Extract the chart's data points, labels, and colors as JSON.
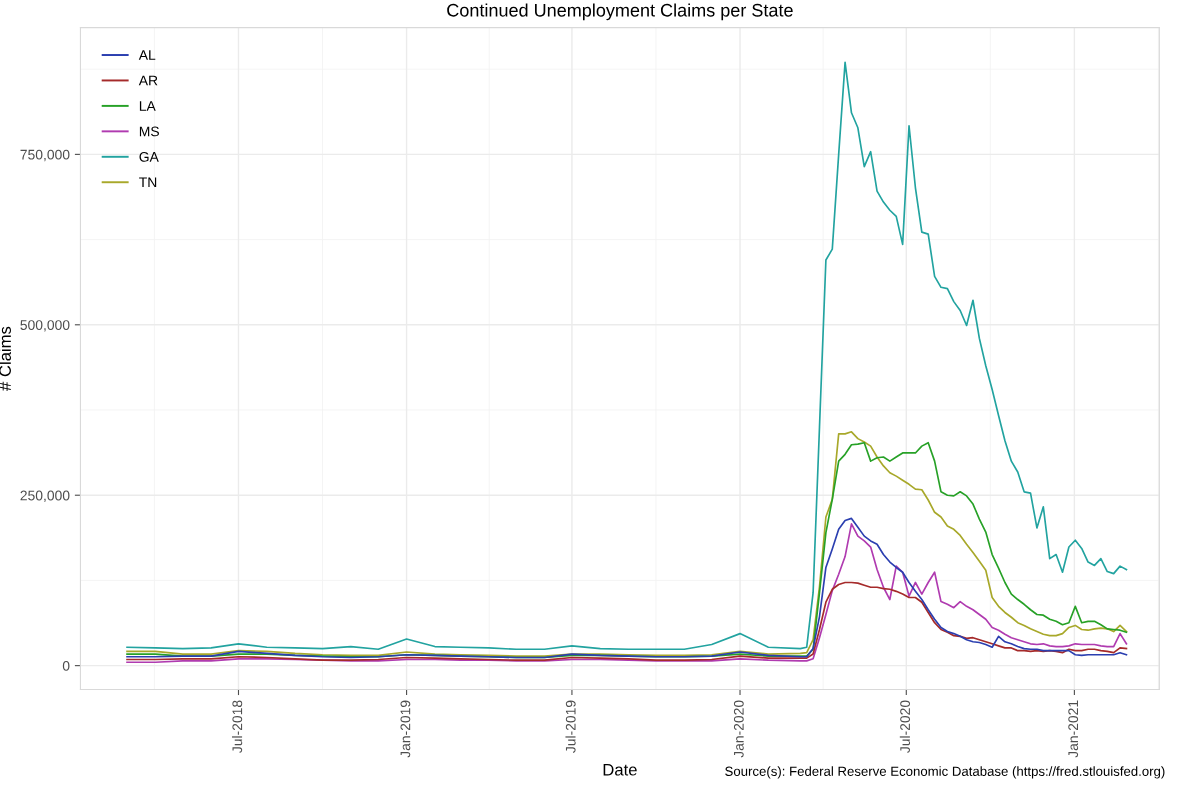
{
  "chart_data": {
    "type": "line",
    "title": "Continued Unemployment Claims per State",
    "xlabel": "Date",
    "ylabel": "# Claims",
    "annotations": [
      "Source(s): Federal Reserve Economic Database (https://fred.stlouisfed.org)"
    ],
    "x": [
      "2018-03-01",
      "2018-04-01",
      "2018-05-01",
      "2018-06-01",
      "2018-07-01",
      "2018-08-01",
      "2018-09-01",
      "2018-10-01",
      "2018-11-01",
      "2018-12-01",
      "2019-01-01",
      "2019-02-01",
      "2019-03-01",
      "2019-04-01",
      "2019-05-01",
      "2019-06-01",
      "2019-07-01",
      "2019-08-01",
      "2019-09-01",
      "2019-10-01",
      "2019-11-01",
      "2019-12-01",
      "2020-01-01",
      "2020-02-01",
      "2020-03-07",
      "2020-03-14",
      "2020-03-21",
      "2020-03-28",
      "2020-04-04",
      "2020-04-11",
      "2020-04-18",
      "2020-04-25",
      "2020-05-02",
      "2020-05-09",
      "2020-05-16",
      "2020-05-23",
      "2020-05-30",
      "2020-06-06",
      "2020-06-13",
      "2020-06-20",
      "2020-06-27",
      "2020-07-04",
      "2020-07-11",
      "2020-07-18",
      "2020-07-25",
      "2020-08-01",
      "2020-08-08",
      "2020-08-15",
      "2020-08-22",
      "2020-08-29",
      "2020-09-05",
      "2020-09-12",
      "2020-09-19",
      "2020-09-26",
      "2020-10-03",
      "2020-10-10",
      "2020-10-17",
      "2020-10-24",
      "2020-10-31",
      "2020-11-07",
      "2020-11-14",
      "2020-11-21",
      "2020-11-28",
      "2020-12-05",
      "2020-12-12",
      "2020-12-19",
      "2020-12-26",
      "2021-01-02",
      "2021-01-09",
      "2021-01-16",
      "2021-01-23",
      "2021-01-30",
      "2021-02-06",
      "2021-02-13",
      "2021-02-20",
      "2021-02-27"
    ],
    "series": [
      {
        "name": "AL",
        "color": "#2b3fb0",
        "values": [
          13000,
          13000,
          14000,
          14000,
          21000,
          18000,
          15000,
          13000,
          12000,
          13000,
          16000,
          15000,
          14000,
          13000,
          12000,
          12000,
          17000,
          15000,
          14000,
          13000,
          13000,
          14000,
          20000,
          15000,
          13000,
          13000,
          25000,
          72000,
          144000,
          171000,
          200000,
          213000,
          216000,
          203000,
          190000,
          183000,
          178000,
          163000,
          152000,
          144000,
          137000,
          122000,
          109000,
          97000,
          82000,
          68000,
          56000,
          50000,
          47000,
          43000,
          38000,
          35000,
          34000,
          31000,
          27000,
          43000,
          35000,
          32000,
          28000,
          25000,
          24000,
          24000,
          22000,
          22000,
          22000,
          22000,
          22000,
          16000,
          15000,
          16000,
          16000,
          16000,
          16000,
          16000,
          19000,
          16000
        ]
      },
      {
        "name": "AR",
        "color": "#a52a2a",
        "values": [
          9000,
          9000,
          10000,
          10000,
          13000,
          12000,
          10000,
          8000,
          8000,
          9000,
          12000,
          11000,
          10000,
          9000,
          8000,
          8000,
          12000,
          11000,
          10000,
          8000,
          8000,
          9000,
          14000,
          11000,
          11000,
          11000,
          17000,
          53000,
          93000,
          112000,
          119000,
          122000,
          122000,
          121000,
          118000,
          115000,
          115000,
          113000,
          112000,
          109000,
          105000,
          100000,
          100000,
          93000,
          78000,
          63000,
          53000,
          49000,
          44000,
          43000,
          40000,
          41000,
          38000,
          35000,
          32000,
          29000,
          26000,
          26000,
          22000,
          22000,
          21000,
          22000,
          21000,
          22000,
          21000,
          19000,
          24000,
          22000,
          22000,
          24000,
          24000,
          22000,
          21000,
          19000,
          26000,
          25000
        ]
      },
      {
        "name": "LA",
        "color": "#27a127",
        "values": [
          17000,
          17000,
          14000,
          14000,
          17000,
          17000,
          15000,
          14000,
          13000,
          13000,
          16000,
          15000,
          14000,
          13000,
          12000,
          12000,
          15000,
          15000,
          14000,
          13000,
          13000,
          14000,
          17000,
          14000,
          14000,
          14000,
          24000,
          107000,
          195000,
          244000,
          300000,
          310000,
          324000,
          325000,
          327000,
          300000,
          305000,
          306000,
          300000,
          306000,
          312000,
          312000,
          312000,
          322000,
          327000,
          300000,
          255000,
          250000,
          249000,
          255000,
          249000,
          237000,
          215000,
          196000,
          163000,
          143000,
          122000,
          105000,
          97000,
          90000,
          82000,
          75000,
          74000,
          68000,
          65000,
          60000,
          63000,
          87000,
          63000,
          65000,
          65000,
          60000,
          54000,
          53000,
          52000,
          49000
        ]
      },
      {
        "name": "MS",
        "color": "#b03bb0",
        "values": [
          5000,
          5000,
          7000,
          7000,
          10000,
          10000,
          9000,
          8000,
          7000,
          7000,
          9000,
          9000,
          8000,
          8000,
          7000,
          7000,
          9000,
          9000,
          8000,
          7000,
          7000,
          7000,
          10000,
          8000,
          7000,
          7000,
          10000,
          41000,
          75000,
          110000,
          134000,
          160000,
          208000,
          190000,
          183000,
          174000,
          141000,
          115000,
          97000,
          146000,
          137000,
          102000,
          122000,
          105000,
          122000,
          137000,
          94000,
          90000,
          85000,
          94000,
          87000,
          82000,
          75000,
          68000,
          56000,
          52000,
          46000,
          41000,
          38000,
          35000,
          32000,
          31000,
          32000,
          29000,
          28000,
          28000,
          29000,
          32000,
          31000,
          31000,
          31000,
          29000,
          28000,
          28000,
          47000,
          32000
        ]
      },
      {
        "name": "GA",
        "color": "#22a3a0",
        "values": [
          27000,
          26000,
          25000,
          26000,
          32000,
          27000,
          26000,
          25000,
          28000,
          24000,
          39000,
          28000,
          27000,
          26000,
          24000,
          24000,
          29000,
          25000,
          24000,
          24000,
          24000,
          31000,
          47000,
          27000,
          25000,
          27000,
          107000,
          350000,
          595000,
          611000,
          750000,
          885000,
          811000,
          789000,
          732000,
          754000,
          696000,
          680000,
          668000,
          659000,
          618000,
          792000,
          701000,
          636000,
          633000,
          571000,
          555000,
          553000,
          534000,
          521000,
          499000,
          536000,
          480000,
          440000,
          405000,
          367000,
          330000,
          300000,
          284000,
          255000,
          253000,
          202000,
          233000,
          157000,
          163000,
          137000,
          174000,
          184000,
          172000,
          152000,
          147000,
          157000,
          138000,
          135000,
          146000,
          141000
        ]
      },
      {
        "name": "TN",
        "color": "#a8a82a",
        "values": [
          21000,
          21000,
          17000,
          17000,
          22000,
          21000,
          18000,
          16000,
          15000,
          15000,
          20000,
          17000,
          16000,
          15000,
          14000,
          14000,
          17000,
          17000,
          16000,
          15000,
          15000,
          16000,
          21000,
          17000,
          18000,
          19000,
          38000,
          116000,
          218000,
          244000,
          340000,
          340000,
          343000,
          333000,
          328000,
          322000,
          306000,
          293000,
          283000,
          278000,
          272000,
          266000,
          259000,
          258000,
          243000,
          225000,
          218000,
          205000,
          200000,
          191000,
          178000,
          166000,
          153000,
          140000,
          100000,
          87000,
          78000,
          71000,
          63000,
          59000,
          54000,
          50000,
          46000,
          44000,
          44000,
          47000,
          56000,
          59000,
          53000,
          52000,
          54000,
          55000,
          54000,
          50000,
          59000,
          50000
        ]
      }
    ],
    "xlim": [
      "2018-01-09",
      "2021-04-04"
    ],
    "xticks": [
      {
        "value": "2018-07-01",
        "label": "Jul-2018"
      },
      {
        "value": "2019-01-01",
        "label": "Jan-2019"
      },
      {
        "value": "2019-07-01",
        "label": "Jul-2019"
      },
      {
        "value": "2020-01-01",
        "label": "Jan-2020"
      },
      {
        "value": "2020-07-01",
        "label": "Jul-2020"
      },
      {
        "value": "2021-01-01",
        "label": "Jan-2021"
      }
    ],
    "ylim": [
      -35000,
      936000
    ],
    "yticks": [
      {
        "value": 0,
        "label": "0"
      },
      {
        "value": 250000,
        "label": "250,000"
      },
      {
        "value": 500000,
        "label": "500,000"
      },
      {
        "value": 750000,
        "label": "750,000"
      }
    ],
    "grid": true,
    "legend": "top left",
    "marker": "none",
    "line_style": "solid"
  }
}
